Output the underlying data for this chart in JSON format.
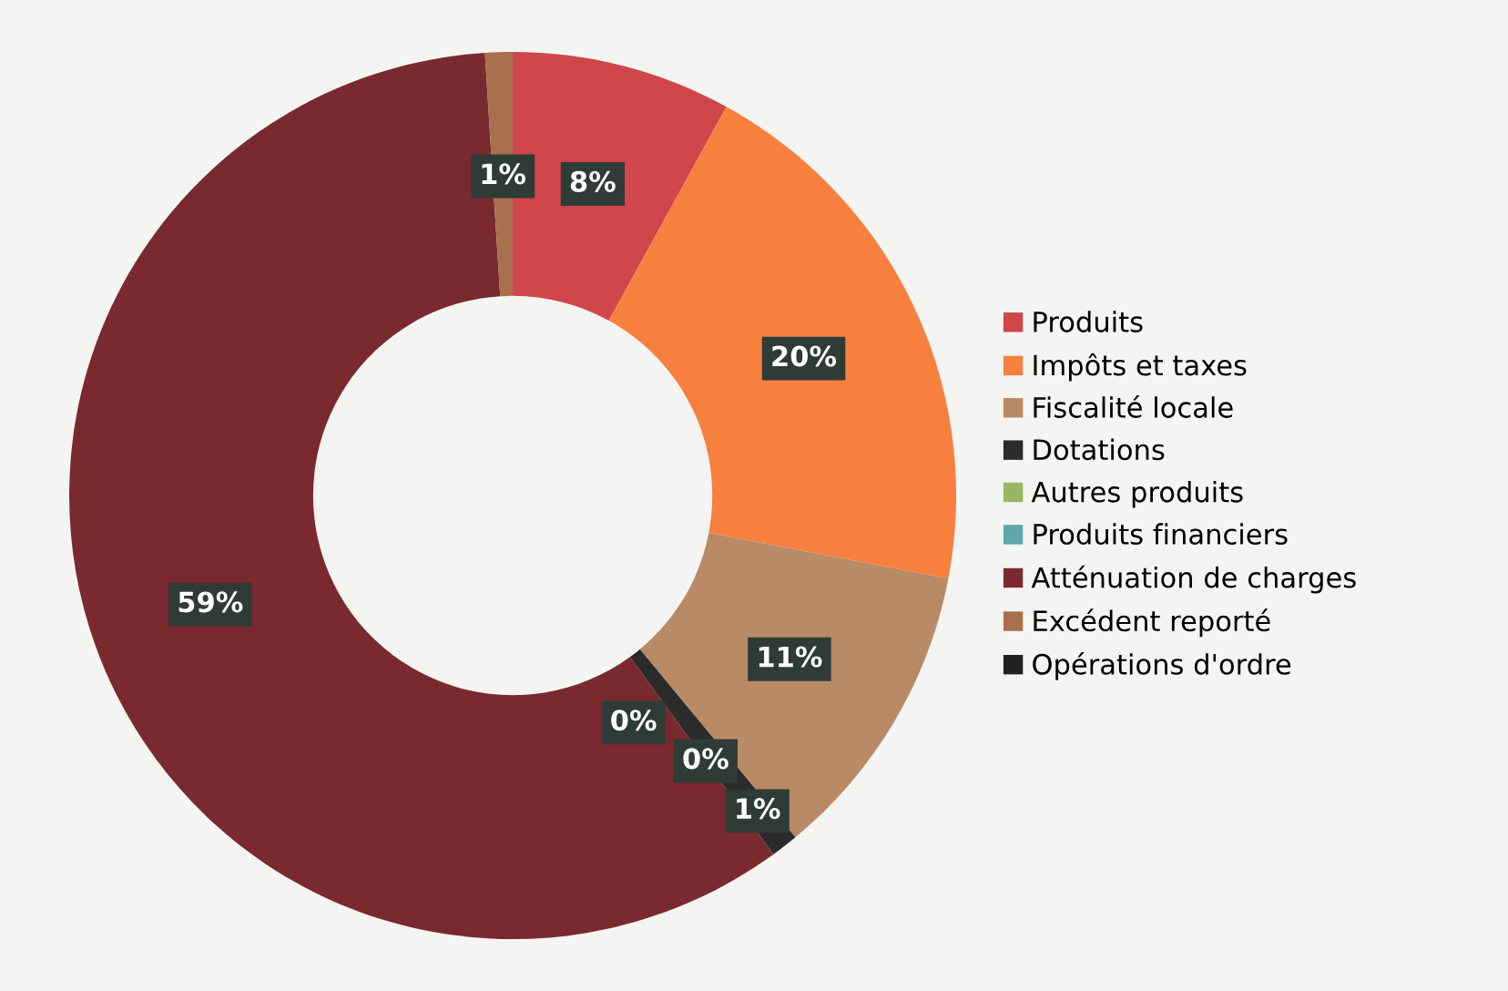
{
  "chart_data": {
    "type": "donut",
    "categories": [
      "Produits",
      "Impôts et taxes",
      "Fiscalité locale",
      "Dotations",
      "Autres produits",
      "Produits financiers",
      "Atténuation de charges",
      "Excédent reporté",
      "Opérations d'ordre"
    ],
    "values": [
      8,
      20,
      11,
      1,
      0,
      0,
      59,
      1,
      0
    ],
    "colors": [
      "#d0464a",
      "#f7803f",
      "#b98a66",
      "#2b2b2b",
      "#9bb567",
      "#5fa8a8",
      "#7a2a2e",
      "#a8704d",
      "#222222"
    ],
    "value_labels": [
      "8%",
      "20%",
      "11%",
      "1%",
      "0%",
      "0%",
      "59%",
      "1%",
      null
    ],
    "legend": "right"
  }
}
